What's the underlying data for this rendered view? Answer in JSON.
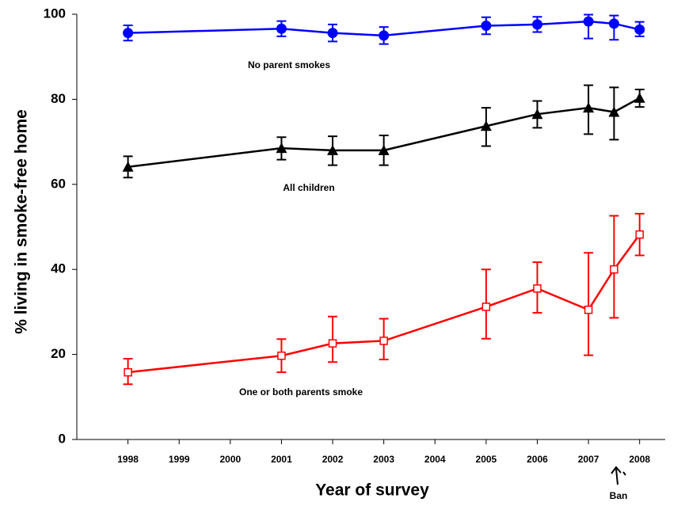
{
  "chart_data": {
    "type": "line",
    "x_label": "Year of survey",
    "y_label": "% living in smoke-free home",
    "xlim": [
      1997,
      2008.5
    ],
    "xticks": [
      1998,
      1999,
      2000,
      2001,
      2002,
      2003,
      2004,
      2005,
      2006,
      2007,
      2008
    ],
    "ylim": [
      0,
      100
    ],
    "yticks": [
      0,
      20,
      40,
      60,
      80,
      100
    ],
    "x": [
      1998,
      2001,
      2002,
      2003,
      2005,
      2006,
      2007,
      2007.5,
      2008
    ],
    "series": [
      {
        "name": "No parent smokes",
        "color": "#0000ff",
        "marker": "circle",
        "values": [
          95.6,
          96.6,
          95.6,
          95.0,
          97.3,
          97.6,
          98.3,
          97.8,
          96.4
        ],
        "lower": [
          93.8,
          94.8,
          93.6,
          93.0,
          95.3,
          95.8,
          94.3,
          94.0,
          94.8
        ],
        "upper": [
          97.4,
          98.4,
          97.6,
          97.0,
          99.3,
          99.4,
          99.9,
          99.7,
          98.2
        ]
      },
      {
        "name": "All children",
        "color": "#000000",
        "marker": "triangle",
        "values": [
          64.1,
          68.5,
          68.0,
          68.0,
          73.7,
          76.5,
          78.0,
          77.0,
          80.3
        ],
        "lower": [
          61.6,
          65.8,
          64.5,
          64.5,
          69.0,
          73.3,
          71.8,
          70.5,
          78.2
        ],
        "upper": [
          66.6,
          71.1,
          71.3,
          71.5,
          78.0,
          79.6,
          83.3,
          82.8,
          82.3
        ]
      },
      {
        "name": "One or both parents smoke",
        "color": "#ff0000",
        "marker": "square",
        "values": [
          15.8,
          19.7,
          22.6,
          23.2,
          31.2,
          35.5,
          30.5,
          40.0,
          48.2
        ],
        "lower": [
          13.0,
          15.8,
          18.2,
          18.8,
          23.7,
          29.8,
          19.8,
          28.6,
          43.3
        ],
        "upper": [
          19.0,
          23.6,
          28.9,
          28.4,
          40.0,
          41.7,
          43.9,
          52.6,
          53.1
        ]
      }
    ],
    "annotation": "Ban"
  }
}
